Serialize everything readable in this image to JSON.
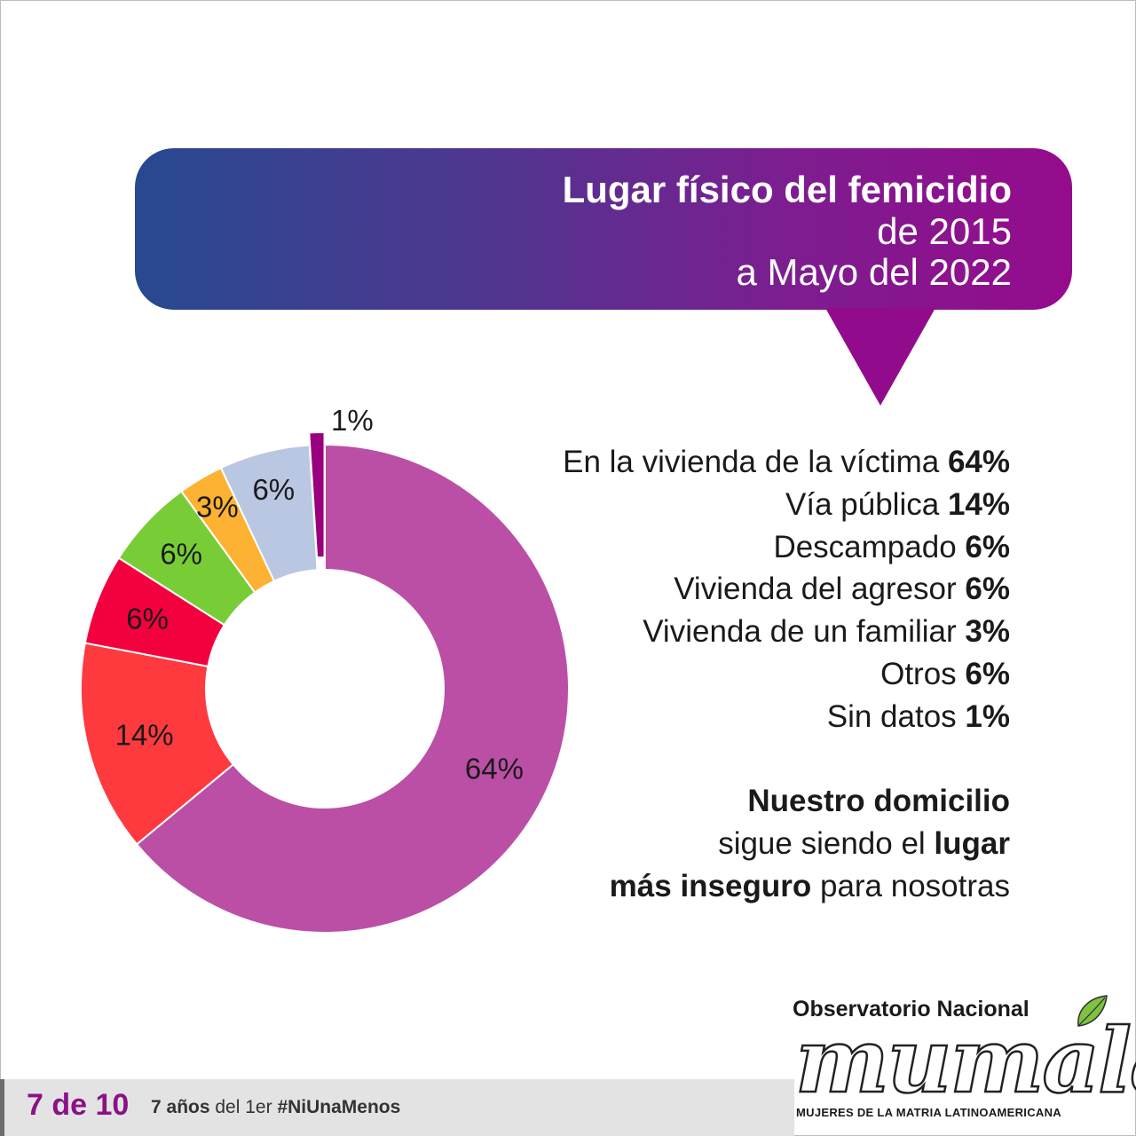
{
  "header": {
    "title": "Lugar físico del femicidio",
    "subtitle_line1": "de 2015",
    "subtitle_line2": "a Mayo del 2022"
  },
  "colors": {
    "bubble_start": "#27498f",
    "bubble_end": "#950b8c",
    "accent": "#8a1287"
  },
  "chart_data": {
    "type": "pie",
    "title": "Lugar físico del femicidio de 2015 a Mayo del 2022",
    "donut": true,
    "categories": [
      "En la vivienda de la víctima",
      "Vía pública",
      "Descampado",
      "Vivienda del agresor",
      "Vivienda de un familiar",
      "Otros",
      "Sin datos"
    ],
    "values": [
      64,
      14,
      6,
      6,
      3,
      6,
      1
    ],
    "value_labels": [
      "64%",
      "14%",
      "6%",
      "6%",
      "3%",
      "6%",
      "1%"
    ],
    "colors": [
      "#bb4fa6",
      "#fe3a3f",
      "#f3003f",
      "#78cd37",
      "#fdb233",
      "#b9c7e2",
      "#99007f"
    ]
  },
  "legend": [
    {
      "label": "En la vivienda de la víctima",
      "value": "64%"
    },
    {
      "label": "Vía pública",
      "value": "14%"
    },
    {
      "label": "Descampado",
      "value": "6%"
    },
    {
      "label": "Vivienda del agresor",
      "value": "6%"
    },
    {
      "label": "Vivienda de un familiar",
      "value": "3%"
    },
    {
      "label": "Otros",
      "value": "6%"
    },
    {
      "label": "Sin datos",
      "value": "1%"
    }
  ],
  "message": {
    "line1_bold": "Nuestro domicilio",
    "line2_normal": "sigue siendo el ",
    "line2_bold": "lugar",
    "line3_bold": "más inseguro",
    "line3_normal": " para nosotras"
  },
  "logo": {
    "title": "Observatorio Nacional",
    "wordmark": "mumala",
    "tagline": "MUJERES DE LA MATRIA LATINOAMERICANA"
  },
  "footer": {
    "count": "7 de 10",
    "years": "7 años",
    "connector": "del 1er",
    "hashtag": "#NiUnaMenos"
  }
}
